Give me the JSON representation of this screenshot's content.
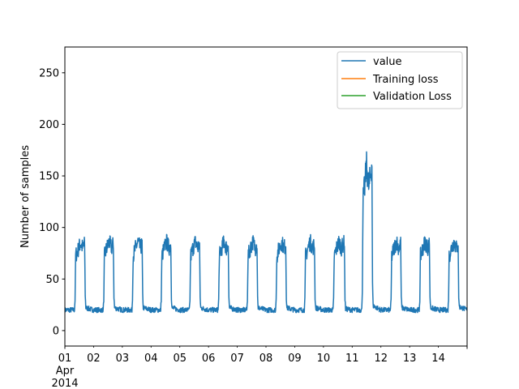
{
  "chart_data": {
    "type": "line",
    "title": "",
    "xlabel": "",
    "ylabel": "Number of samples",
    "x_axis": {
      "type": "date",
      "range": [
        "2014-04-01",
        "2014-04-15"
      ],
      "major_tick": {
        "value": "2014-04-01",
        "lines": [
          "01",
          "Apr",
          "2014"
        ]
      },
      "minor_ticks": [
        {
          "value": "2014-04-02",
          "label": "02"
        },
        {
          "value": "2014-04-03",
          "label": "03"
        },
        {
          "value": "2014-04-04",
          "label": "04"
        },
        {
          "value": "2014-04-05",
          "label": "05"
        },
        {
          "value": "2014-04-06",
          "label": "06"
        },
        {
          "value": "2014-04-07",
          "label": "07"
        },
        {
          "value": "2014-04-08",
          "label": "08"
        },
        {
          "value": "2014-04-09",
          "label": "09"
        },
        {
          "value": "2014-04-10",
          "label": "10"
        },
        {
          "value": "2014-04-11",
          "label": "11"
        },
        {
          "value": "2014-04-12",
          "label": "12"
        },
        {
          "value": "2014-04-13",
          "label": "13"
        },
        {
          "value": "2014-04-14",
          "label": "14"
        }
      ]
    },
    "y_axis": {
      "range": [
        -15,
        275
      ],
      "ticks": [
        0,
        50,
        100,
        150,
        200,
        250
      ]
    },
    "grid": false,
    "legend": {
      "placement": "upper right",
      "entries": [
        {
          "name": "value",
          "color": "#1f77b4"
        },
        {
          "name": "Training loss",
          "color": "#ff7f0e"
        },
        {
          "name": "Validation Loss",
          "color": "#2ca02c"
        }
      ]
    },
    "series": [
      {
        "name": "value",
        "color": "#1f77b4",
        "points": [
          [
            "2014-04-01T00:00",
            20
          ],
          [
            "2014-04-01T08:00",
            20
          ],
          [
            "2014-04-01T08:30",
            30
          ],
          [
            "2014-04-01T09:00",
            73
          ],
          [
            "2014-04-01T11:00",
            78
          ],
          [
            "2014-04-01T13:00",
            85
          ],
          [
            "2014-04-01T15:00",
            80
          ],
          [
            "2014-04-01T16:30",
            84
          ],
          [
            "2014-04-01T17:00",
            35
          ],
          [
            "2014-04-01T17:30",
            22
          ],
          [
            "2014-04-02T00:00",
            20
          ],
          [
            "2014-04-02T08:00",
            20
          ],
          [
            "2014-04-02T08:30",
            30
          ],
          [
            "2014-04-02T09:00",
            72
          ],
          [
            "2014-04-02T11:00",
            80
          ],
          [
            "2014-04-02T13:00",
            86
          ],
          [
            "2014-04-02T15:00",
            80
          ],
          [
            "2014-04-02T16:30",
            84
          ],
          [
            "2014-04-02T17:00",
            33
          ],
          [
            "2014-04-02T17:30",
            22
          ],
          [
            "2014-04-03T00:00",
            20
          ],
          [
            "2014-04-03T08:00",
            20
          ],
          [
            "2014-04-03T08:30",
            30
          ],
          [
            "2014-04-03T09:00",
            72
          ],
          [
            "2014-04-03T11:00",
            80
          ],
          [
            "2014-04-03T13:00",
            86
          ],
          [
            "2014-04-03T15:00",
            80
          ],
          [
            "2014-04-03T16:30",
            84
          ],
          [
            "2014-04-03T17:00",
            35
          ],
          [
            "2014-04-03T17:30",
            22
          ],
          [
            "2014-04-04T00:00",
            20
          ],
          [
            "2014-04-04T08:00",
            20
          ],
          [
            "2014-04-04T08:30",
            30
          ],
          [
            "2014-04-04T09:00",
            72
          ],
          [
            "2014-04-04T11:00",
            80
          ],
          [
            "2014-04-04T13:00",
            86
          ],
          [
            "2014-04-04T15:00",
            80
          ],
          [
            "2014-04-04T16:30",
            84
          ],
          [
            "2014-04-04T17:00",
            32
          ],
          [
            "2014-04-04T17:30",
            22
          ],
          [
            "2014-04-05T00:00",
            20
          ],
          [
            "2014-04-05T08:00",
            20
          ],
          [
            "2014-04-05T08:30",
            30
          ],
          [
            "2014-04-05T09:00",
            72
          ],
          [
            "2014-04-05T11:00",
            80
          ],
          [
            "2014-04-05T13:00",
            86
          ],
          [
            "2014-04-05T15:00",
            80
          ],
          [
            "2014-04-05T16:30",
            84
          ],
          [
            "2014-04-05T17:00",
            32
          ],
          [
            "2014-04-05T17:30",
            22
          ],
          [
            "2014-04-06T00:00",
            20
          ],
          [
            "2014-04-06T08:00",
            20
          ],
          [
            "2014-04-06T08:30",
            30
          ],
          [
            "2014-04-06T09:00",
            72
          ],
          [
            "2014-04-06T11:00",
            80
          ],
          [
            "2014-04-06T13:00",
            86
          ],
          [
            "2014-04-06T15:00",
            80
          ],
          [
            "2014-04-06T16:30",
            84
          ],
          [
            "2014-04-06T17:00",
            32
          ],
          [
            "2014-04-06T17:30",
            22
          ],
          [
            "2014-04-07T00:00",
            20
          ],
          [
            "2014-04-07T08:00",
            20
          ],
          [
            "2014-04-07T08:30",
            30
          ],
          [
            "2014-04-07T09:00",
            72
          ],
          [
            "2014-04-07T11:00",
            80
          ],
          [
            "2014-04-07T13:00",
            86
          ],
          [
            "2014-04-07T15:00",
            80
          ],
          [
            "2014-04-07T16:30",
            84
          ],
          [
            "2014-04-07T17:00",
            32
          ],
          [
            "2014-04-07T17:30",
            22
          ],
          [
            "2014-04-08T00:00",
            20
          ],
          [
            "2014-04-08T08:00",
            20
          ],
          [
            "2014-04-08T08:30",
            30
          ],
          [
            "2014-04-08T09:00",
            72
          ],
          [
            "2014-04-08T11:00",
            80
          ],
          [
            "2014-04-08T13:00",
            86
          ],
          [
            "2014-04-08T15:00",
            80
          ],
          [
            "2014-04-08T16:30",
            84
          ],
          [
            "2014-04-08T17:00",
            32
          ],
          [
            "2014-04-08T17:30",
            22
          ],
          [
            "2014-04-09T00:00",
            20
          ],
          [
            "2014-04-09T08:00",
            20
          ],
          [
            "2014-04-09T08:30",
            30
          ],
          [
            "2014-04-09T09:00",
            72
          ],
          [
            "2014-04-09T11:00",
            80
          ],
          [
            "2014-04-09T13:00",
            86
          ],
          [
            "2014-04-09T15:00",
            80
          ],
          [
            "2014-04-09T16:30",
            84
          ],
          [
            "2014-04-09T17:00",
            32
          ],
          [
            "2014-04-09T17:30",
            22
          ],
          [
            "2014-04-10T00:00",
            20
          ],
          [
            "2014-04-10T08:00",
            20
          ],
          [
            "2014-04-10T08:30",
            30
          ],
          [
            "2014-04-10T09:00",
            72
          ],
          [
            "2014-04-10T11:00",
            80
          ],
          [
            "2014-04-10T13:00",
            86
          ],
          [
            "2014-04-10T15:00",
            80
          ],
          [
            "2014-04-10T17:30",
            86
          ],
          [
            "2014-04-10T18:00",
            30
          ],
          [
            "2014-04-10T18:30",
            21
          ],
          [
            "2014-04-11T00:00",
            20
          ],
          [
            "2014-04-11T08:00",
            20
          ],
          [
            "2014-04-11T08:30",
            40
          ],
          [
            "2014-04-11T09:00",
            125
          ],
          [
            "2014-04-11T10:30",
            140
          ],
          [
            "2014-04-11T12:00",
            160
          ],
          [
            "2014-04-11T14:00",
            138
          ],
          [
            "2014-04-11T16:30",
            163
          ],
          [
            "2014-04-11T17:00",
            45
          ],
          [
            "2014-04-11T17:30",
            24
          ],
          [
            "2014-04-12T00:00",
            20
          ],
          [
            "2014-04-12T08:00",
            20
          ],
          [
            "2014-04-12T08:30",
            30
          ],
          [
            "2014-04-12T09:00",
            72
          ],
          [
            "2014-04-12T11:00",
            80
          ],
          [
            "2014-04-12T13:00",
            86
          ],
          [
            "2014-04-12T15:00",
            80
          ],
          [
            "2014-04-12T16:30",
            84
          ],
          [
            "2014-04-12T17:00",
            33
          ],
          [
            "2014-04-12T17:30",
            22
          ],
          [
            "2014-04-13T00:00",
            20
          ],
          [
            "2014-04-13T08:00",
            20
          ],
          [
            "2014-04-13T08:30",
            30
          ],
          [
            "2014-04-13T09:00",
            72
          ],
          [
            "2014-04-13T11:00",
            80
          ],
          [
            "2014-04-13T13:00",
            86
          ],
          [
            "2014-04-13T15:00",
            80
          ],
          [
            "2014-04-13T16:30",
            84
          ],
          [
            "2014-04-13T17:00",
            33
          ],
          [
            "2014-04-13T17:30",
            22
          ],
          [
            "2014-04-14T00:00",
            20
          ],
          [
            "2014-04-14T08:00",
            20
          ],
          [
            "2014-04-14T08:30",
            30
          ],
          [
            "2014-04-14T09:00",
            72
          ],
          [
            "2014-04-14T11:00",
            80
          ],
          [
            "2014-04-14T13:00",
            86
          ],
          [
            "2014-04-14T15:00",
            80
          ],
          [
            "2014-04-14T16:30",
            84
          ],
          [
            "2014-04-14T17:00",
            33
          ],
          [
            "2014-04-14T17:30",
            23
          ],
          [
            "2014-04-14T20:00",
            22
          ],
          [
            "2014-04-15T00:00",
            20
          ]
        ]
      },
      {
        "name": "Training loss",
        "color": "#ff7f0e",
        "points": []
      },
      {
        "name": "Validation Loss",
        "color": "#2ca02c",
        "points": []
      }
    ]
  }
}
